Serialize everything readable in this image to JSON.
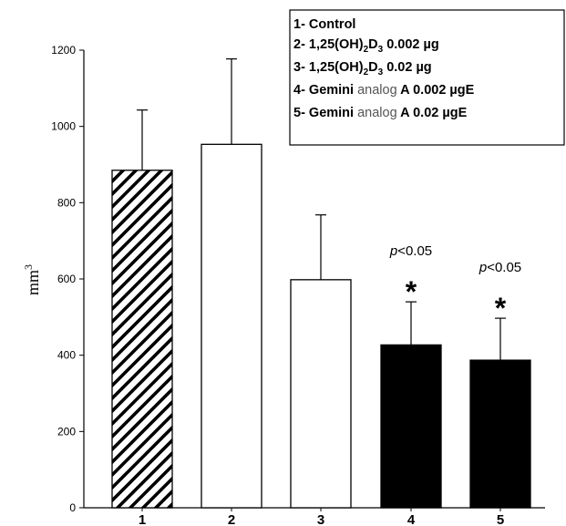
{
  "chart_data": {
    "type": "bar",
    "categories": [
      "1",
      "2",
      "3",
      "4",
      "5"
    ],
    "values": [
      885,
      953,
      598,
      427,
      387
    ],
    "error_upper": [
      1043,
      1177,
      768,
      540,
      497
    ],
    "fills": [
      "hatch",
      "#ffffff",
      "#ffffff",
      "#000000",
      "#000000"
    ],
    "ylabel": "mm",
    "ylabel_sup": "3",
    "ylim": [
      0,
      1200
    ],
    "yticks": [
      "0",
      "200",
      "400",
      "600",
      "800",
      "1000",
      "1200"
    ],
    "grid": false,
    "legend": {
      "position": "top-right",
      "entries": [
        {
          "prefix": "1- Control"
        },
        {
          "prefix": "2- 1,25(OH)",
          "sub1": "2",
          "mid": "D",
          "sub2": "3",
          "suffix": " 0.002 µg"
        },
        {
          "prefix": "3- 1,25(OH)",
          "sub1": "2",
          "mid": "D",
          "sub2": "3",
          "suffix": " 0.02 µg"
        },
        {
          "prefix": "4- Gemini ",
          "light": "analog",
          "suffix": "  A 0.002 µgE"
        },
        {
          "prefix": "5- Gemini ",
          "light": "analog",
          "suffix": "  A 0.02 µgE"
        }
      ]
    },
    "annotations": [
      {
        "bar": 3,
        "pvalue_italic": "p",
        "pvalue_rest": "<0.05",
        "marker": "*"
      },
      {
        "bar": 4,
        "pvalue_italic": "p",
        "pvalue_rest": "<0.05",
        "marker": "*"
      }
    ]
  }
}
